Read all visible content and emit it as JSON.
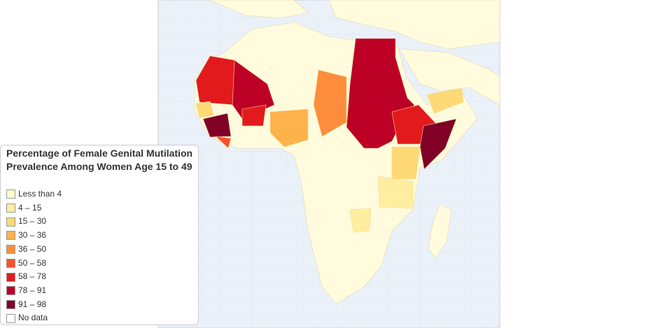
{
  "legend": {
    "title": "Percentage of Female Genital Mutilation Prevalence Among Women Age 15 to 49",
    "items": [
      {
        "label": "Less than 4",
        "color": "#ffffcc"
      },
      {
        "label": "4 – 15",
        "color": "#ffeda0"
      },
      {
        "label": "15 – 30",
        "color": "#fed976"
      },
      {
        "label": "30 – 36",
        "color": "#feb24c"
      },
      {
        "label": "36 – 50",
        "color": "#fd8d3c"
      },
      {
        "label": "50 – 58",
        "color": "#fc4e2a"
      },
      {
        "label": "58 – 78",
        "color": "#e31a1c"
      },
      {
        "label": "78 – 91",
        "color": "#bd0026"
      },
      {
        "label": "91 – 98",
        "color": "#800026"
      },
      {
        "label": "No data",
        "color": "#ffffff"
      }
    ]
  }
}
